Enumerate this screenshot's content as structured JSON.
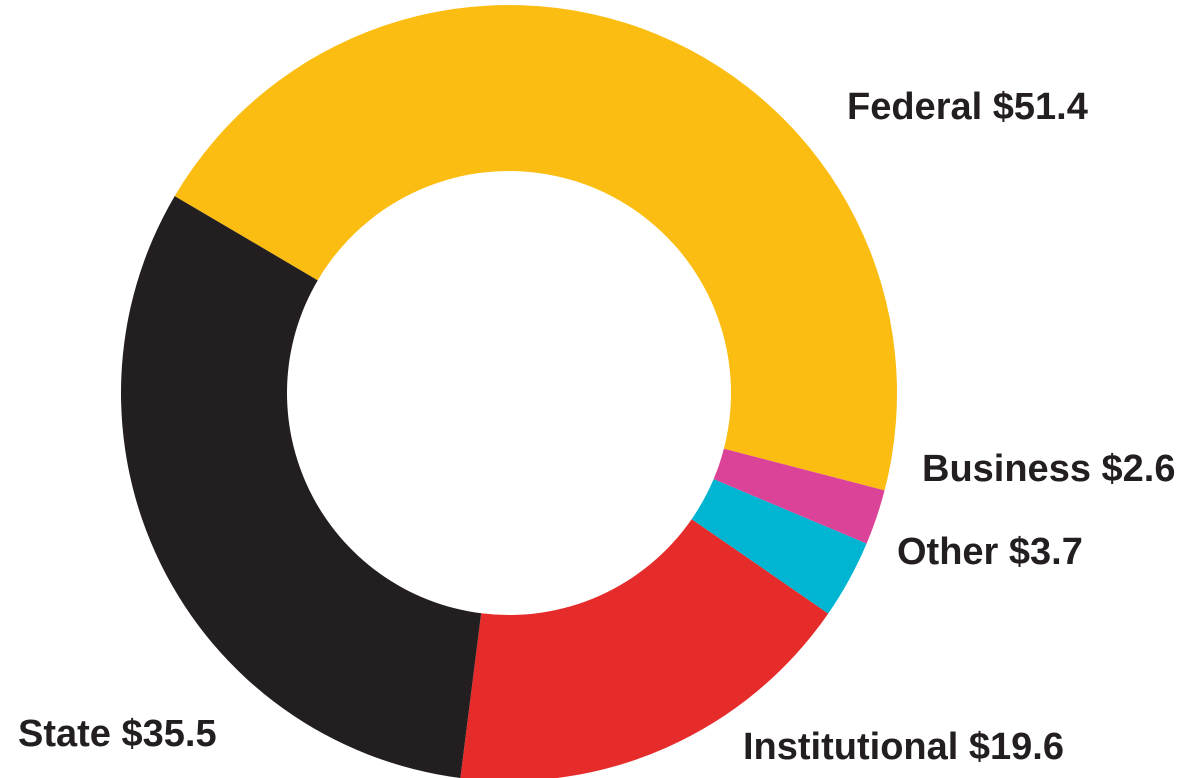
{
  "chart_data": {
    "type": "pie",
    "style": "donut",
    "slices": [
      {
        "label": "Federal",
        "value": 51.4,
        "display": "Federal $51.4",
        "color": "#fbbd12"
      },
      {
        "label": "Business",
        "value": 2.6,
        "display": "Business $2.6",
        "color": "#da4397"
      },
      {
        "label": "Other",
        "value": 3.7,
        "display": "Other $3.7",
        "color": "#00b5d1"
      },
      {
        "label": "Institutional",
        "value": 19.6,
        "display": "Institutional $19.6",
        "color": "#e62c2b"
      },
      {
        "label": "State",
        "value": 35.5,
        "display": "State $35.5",
        "color": "#231f20"
      }
    ],
    "legend": "none"
  }
}
